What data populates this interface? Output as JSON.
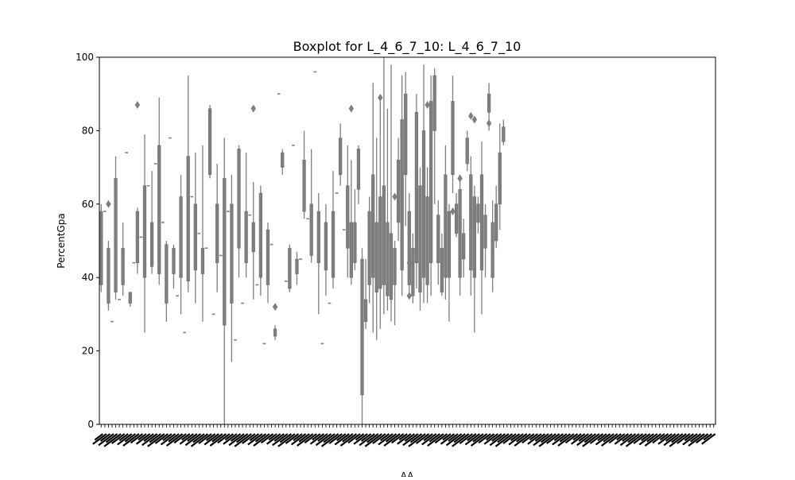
{
  "chart_data": {
    "type": "box",
    "title": "Boxplot for L_4_6_7_10: L_4_6_7_10",
    "xlabel": "AA",
    "ylabel": "PercentGpa",
    "ylim": [
      0,
      100
    ],
    "yticks": [
      0,
      20,
      40,
      60,
      80,
      100
    ],
    "n_categories": 170,
    "category_labels_legible": false,
    "box_color": "#7f7f7f",
    "grid": false,
    "sampled_boxes": [
      {
        "q1": 38,
        "q3": 58,
        "whislo": 36,
        "whishi": 60
      },
      {
        "q1": 33,
        "q3": 48,
        "whislo": 31,
        "whishi": 50,
        "fliers": [
          60
        ]
      },
      {
        "q1": 36,
        "q3": 67,
        "whislo": 34,
        "whishi": 73
      },
      {
        "q1": 38,
        "q3": 48,
        "whislo": 35,
        "whishi": 55
      },
      {
        "q1": 33,
        "q3": 36,
        "whislo": 32,
        "whishi": 36
      },
      {
        "q1": 44,
        "q3": 58,
        "whislo": 41,
        "whishi": 59,
        "fliers": [
          87
        ]
      },
      {
        "q1": 40,
        "q3": 65,
        "whislo": 25,
        "whishi": 79
      },
      {
        "q1": 43,
        "q3": 55,
        "whislo": 41,
        "whishi": 69
      },
      {
        "q1": 41,
        "q3": 76,
        "whislo": 38,
        "whishi": 89
      },
      {
        "q1": 33,
        "q3": 49,
        "whislo": 28,
        "whishi": 50
      },
      {
        "q1": 41,
        "q3": 48,
        "whislo": 37,
        "whishi": 49
      },
      {
        "q1": 40,
        "q3": 62,
        "whislo": 30,
        "whishi": 68
      },
      {
        "q1": 39,
        "q3": 73,
        "whislo": 36,
        "whishi": 95
      },
      {
        "q1": 42,
        "q3": 60,
        "whislo": 33,
        "whishi": 74
      },
      {
        "q1": 41,
        "q3": 48,
        "whislo": 28,
        "whishi": 76
      },
      {
        "q1": 68,
        "q3": 86,
        "whislo": 67,
        "whishi": 87
      },
      {
        "q1": 44,
        "q3": 60,
        "whislo": 36,
        "whishi": 71
      },
      {
        "q1": 27,
        "q3": 67,
        "whislo": 0,
        "whishi": 78
      },
      {
        "q1": 33,
        "q3": 60,
        "whislo": 17,
        "whishi": 68
      },
      {
        "q1": 48,
        "q3": 75,
        "whislo": 40,
        "whishi": 76
      },
      {
        "q1": 44,
        "q3": 58,
        "whislo": 40,
        "whishi": 74
      },
      {
        "q1": 47,
        "q3": 55,
        "whislo": 34,
        "whishi": 66,
        "fliers": [
          86
        ]
      },
      {
        "q1": 40,
        "q3": 63,
        "whislo": 35,
        "whishi": 65
      },
      {
        "q1": 38,
        "q3": 53,
        "whislo": 33,
        "whishi": 55
      },
      {
        "q1": 24,
        "q3": 26,
        "whislo": 23,
        "whishi": 27,
        "fliers": [
          32
        ]
      },
      {
        "q1": 70,
        "q3": 74,
        "whislo": 68,
        "whishi": 75
      },
      {
        "q1": 37,
        "q3": 48,
        "whislo": 36,
        "whishi": 49
      },
      {
        "q1": 41,
        "q3": 45,
        "whislo": 38,
        "whishi": 47
      },
      {
        "q1": 58,
        "q3": 72,
        "whislo": 56,
        "whishi": 80
      },
      {
        "q1": 46,
        "q3": 60,
        "whislo": 44,
        "whishi": 75
      },
      {
        "q1": 44,
        "q3": 58,
        "whislo": 30,
        "whishi": 63
      },
      {
        "q1": 42,
        "q3": 55,
        "whislo": 35,
        "whishi": 60
      },
      {
        "q1": 40,
        "q3": 58,
        "whislo": 37,
        "whishi": 69
      },
      {
        "q1": 68,
        "q3": 78,
        "whislo": 65,
        "whishi": 82
      },
      {
        "q1": 48,
        "q3": 65,
        "whislo": 40,
        "whishi": 76
      },
      {
        "q1": 40,
        "q3": 55,
        "whislo": 38,
        "whishi": 72,
        "fliers": [
          86
        ]
      },
      {
        "q1": 44,
        "q3": 55,
        "whislo": 42,
        "whishi": 64
      },
      {
        "q1": 64,
        "q3": 75,
        "whislo": 60,
        "whishi": 76
      },
      {
        "q1": 8,
        "q3": 45,
        "whislo": 0,
        "whishi": 48
      },
      {
        "q1": 28,
        "q3": 34,
        "whislo": 26,
        "whishi": 45
      },
      {
        "q1": 38,
        "q3": 58,
        "whislo": 33,
        "whishi": 62
      },
      {
        "q1": 40,
        "q3": 68,
        "whislo": 25,
        "whishi": 93
      },
      {
        "q1": 36,
        "q3": 55,
        "whislo": 23,
        "whishi": 78
      },
      {
        "q1": 37,
        "q3": 62,
        "whislo": 26,
        "whishi": 88,
        "fliers": [
          89
        ]
      },
      {
        "q1": 38,
        "q3": 65,
        "whislo": 30,
        "whishi": 100
      },
      {
        "q1": 35,
        "q3": 55,
        "whislo": 31,
        "whishi": 86
      },
      {
        "q1": 34,
        "q3": 52,
        "whislo": 28,
        "whishi": 98
      },
      {
        "q1": 38,
        "q3": 48,
        "whislo": 27,
        "whishi": 50,
        "fliers": [
          62
        ]
      },
      {
        "q1": 55,
        "q3": 72,
        "whislo": 50,
        "whishi": 78
      },
      {
        "q1": 42,
        "q3": 83,
        "whislo": 35,
        "whishi": 95
      },
      {
        "q1": 68,
        "q3": 90,
        "whislo": 54,
        "whishi": 96
      },
      {
        "q1": 38,
        "q3": 58,
        "whislo": 35,
        "whishi": 63,
        "fliers": [
          44,
          35
        ]
      },
      {
        "q1": 35,
        "q3": 48,
        "whislo": 33,
        "whishi": 52
      },
      {
        "q1": 44,
        "q3": 85,
        "whislo": 37,
        "whishi": 90
      },
      {
        "q1": 36,
        "q3": 65,
        "whislo": 31,
        "whishi": 70
      },
      {
        "q1": 40,
        "q3": 80,
        "whislo": 33,
        "whishi": 98
      },
      {
        "q1": 38,
        "q3": 62,
        "whislo": 33,
        "whishi": 70,
        "fliers": [
          87
        ]
      },
      {
        "q1": 44,
        "q3": 88,
        "whislo": 35,
        "whishi": 95
      },
      {
        "q1": 80,
        "q3": 95,
        "whislo": 60,
        "whishi": 97
      },
      {
        "q1": 44,
        "q3": 57,
        "whislo": 38,
        "whishi": 61
      },
      {
        "q1": 36,
        "q3": 48,
        "whislo": 35,
        "whishi": 52
      },
      {
        "q1": 40,
        "q3": 68,
        "whislo": 34,
        "whishi": 76
      },
      {
        "q1": 40,
        "q3": 58,
        "whislo": 28,
        "whishi": 60
      },
      {
        "q1": 68,
        "q3": 88,
        "whislo": 63,
        "whishi": 95,
        "fliers": [
          58
        ]
      },
      {
        "q1": 52,
        "q3": 60,
        "whislo": 51,
        "whishi": 63
      },
      {
        "q1": 40,
        "q3": 64,
        "whislo": 35,
        "whishi": 68,
        "fliers": [
          67
        ]
      },
      {
        "q1": 45,
        "q3": 52,
        "whislo": 40,
        "whishi": 56
      },
      {
        "q1": 71,
        "q3": 78,
        "whislo": 69,
        "whishi": 80
      },
      {
        "q1": 42,
        "q3": 68,
        "whislo": 35,
        "whishi": 73,
        "fliers": [
          84
        ]
      },
      {
        "q1": 40,
        "q3": 62,
        "whislo": 25,
        "whishi": 65,
        "fliers": [
          83
        ]
      },
      {
        "q1": 55,
        "q3": 60,
        "whislo": 52,
        "whishi": 62
      },
      {
        "q1": 42,
        "q3": 68,
        "whislo": 30,
        "whishi": 77
      },
      {
        "q1": 48,
        "q3": 57,
        "whislo": 40,
        "whishi": 60
      },
      {
        "q1": 85,
        "q3": 90,
        "whislo": 80,
        "whishi": 93,
        "fliers": [
          82
        ]
      },
      {
        "q1": 40,
        "q3": 55,
        "whislo": 36,
        "whishi": 61
      },
      {
        "q1": 50,
        "q3": 60,
        "whislo": 48,
        "whishi": 65
      },
      {
        "q1": 60,
        "q3": 74,
        "whislo": 53,
        "whishi": 82
      },
      {
        "q1": 77,
        "q3": 81,
        "whislo": 76,
        "whishi": 83
      }
    ],
    "single_value_markers": [
      58,
      28,
      34,
      74,
      44,
      51,
      65,
      71,
      55,
      78,
      35,
      25,
      62,
      52,
      48,
      30,
      46,
      58,
      23,
      33,
      57,
      38,
      22,
      49,
      90,
      39,
      76,
      45,
      56,
      96,
      22,
      33,
      63,
      53
    ]
  }
}
